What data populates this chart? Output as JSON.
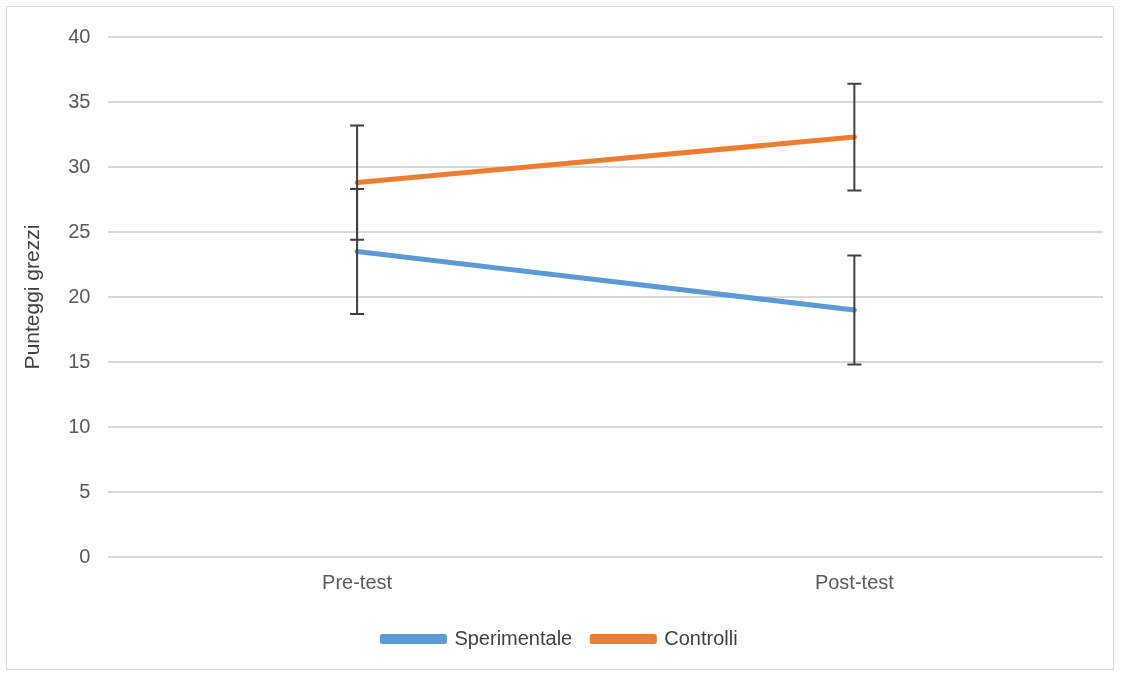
{
  "chart_data": {
    "type": "line",
    "ylabel": "Punteggi grezzi",
    "categories": [
      "Pre-test",
      "Post-test"
    ],
    "series": [
      {
        "name": "Sperimentale",
        "color": "#5b9bd5",
        "values": [
          23.5,
          19.0
        ],
        "errors": [
          4.8,
          4.2
        ]
      },
      {
        "name": "Controlli",
        "color": "#ed7d31",
        "values": [
          28.8,
          32.3
        ],
        "errors": [
          4.4,
          4.1
        ]
      }
    ],
    "ylim": [
      0,
      40
    ],
    "yticks": [
      0,
      5,
      10,
      15,
      20,
      25,
      30,
      35,
      40
    ],
    "grid": "y",
    "legend": "bottom",
    "marker": "none",
    "line_style": "solid"
  }
}
